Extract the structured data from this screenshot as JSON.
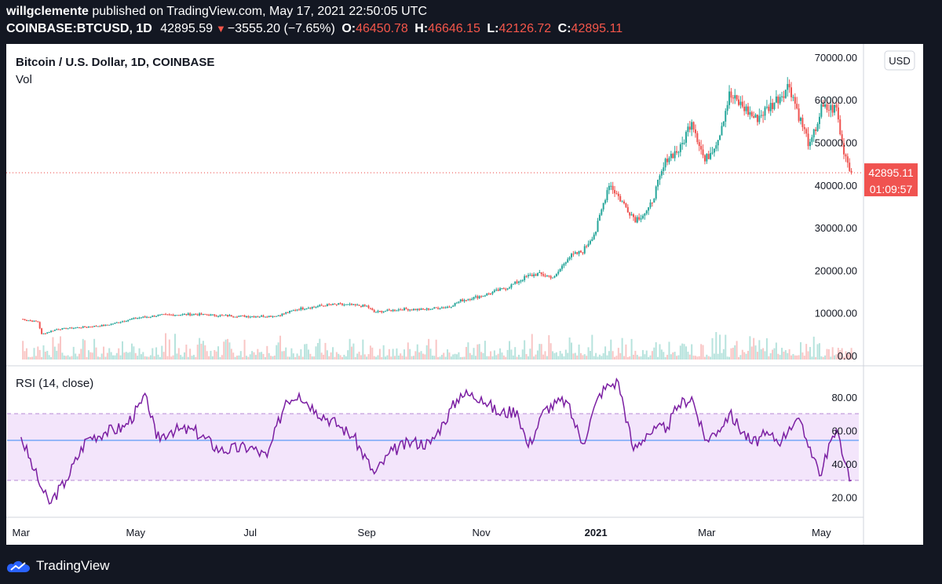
{
  "header": {
    "author": "willgclemente",
    "published": "published on TradingView.com, May 17, 2021 22:50:05 UTC",
    "symbol": "COINBASE:BTCUSD, 1D",
    "price": "42895.59",
    "change": "−3555.20 (−7.65%)",
    "o_label": "O:",
    "o_value": "46450.78",
    "h_label": "H:",
    "h_value": "46646.15",
    "l_label": "L:",
    "l_value": "42126.72",
    "c_label": "C:",
    "c_value": "42895.11"
  },
  "footer": {
    "brand": "TradingView"
  },
  "colors": {
    "up": "#26a69a",
    "down": "#ef5350",
    "rsi_line": "#7b1fa2",
    "rsi_band": "#f3e5fb",
    "rsi_mid": "#5b9cf6",
    "price_tag": "#f05350"
  },
  "chart_data": [
    {
      "type": "candlestick",
      "title": "Bitcoin / U.S. Dollar, 1D, COINBASE",
      "subtitle": "Vol",
      "currency": "USD",
      "price_tag": "42895.11",
      "countdown": "01:09:57",
      "x_ticks": [
        "Mar",
        "May",
        "Jul",
        "Sep",
        "Nov",
        "2021",
        "Mar",
        "May"
      ],
      "y_ticks": [
        "70000.00",
        "60000.00",
        "50000.00",
        "40000.00",
        "30000.00",
        "20000.00",
        "10000.00",
        "0.00"
      ],
      "ylim": [
        0,
        70000
      ],
      "x": [
        "2020-03-01",
        "2020-03-10",
        "2020-03-12",
        "2020-03-20",
        "2020-04-01",
        "2020-04-15",
        "2020-05-01",
        "2020-05-15",
        "2020-06-01",
        "2020-06-15",
        "2020-07-01",
        "2020-07-15",
        "2020-07-27",
        "2020-08-10",
        "2020-08-17",
        "2020-09-01",
        "2020-09-05",
        "2020-09-20",
        "2020-10-01",
        "2020-10-15",
        "2020-10-21",
        "2020-11-01",
        "2020-11-15",
        "2020-11-25",
        "2020-12-01",
        "2020-12-10",
        "2020-12-17",
        "2020-12-25",
        "2021-01-01",
        "2021-01-08",
        "2021-01-15",
        "2021-01-22",
        "2021-01-29",
        "2021-02-08",
        "2021-02-15",
        "2021-02-21",
        "2021-02-28",
        "2021-03-07",
        "2021-03-13",
        "2021-03-20",
        "2021-03-27",
        "2021-04-05",
        "2021-04-14",
        "2021-04-20",
        "2021-04-25",
        "2021-05-01",
        "2021-05-09",
        "2021-05-12",
        "2021-05-17"
      ],
      "close": [
        8600,
        7900,
        5000,
        6200,
        6600,
        7100,
        8800,
        9500,
        9700,
        9400,
        9200,
        9300,
        11000,
        11800,
        12000,
        11600,
        10200,
        10900,
        10800,
        11500,
        12900,
        14000,
        16000,
        18500,
        19200,
        18300,
        23000,
        24500,
        29300,
        40500,
        36000,
        32000,
        34000,
        46500,
        48500,
        55500,
        45500,
        51000,
        61000,
        58500,
        55500,
        59000,
        63500,
        55000,
        49000,
        57800,
        58000,
        49500,
        42895
      ]
    },
    {
      "type": "line",
      "title": "RSI (14, close)",
      "y_ticks": [
        "80.00",
        "60.00",
        "40.00",
        "20.00"
      ],
      "ylim": [
        15,
        90
      ],
      "bands": [
        30,
        70
      ],
      "midline": 54,
      "x": [
        "2020-03-01",
        "2020-03-08",
        "2020-03-12",
        "2020-03-16",
        "2020-03-25",
        "2020-04-05",
        "2020-04-15",
        "2020-04-25",
        "2020-05-07",
        "2020-05-12",
        "2020-05-20",
        "2020-06-01",
        "2020-06-15",
        "2020-07-01",
        "2020-07-10",
        "2020-07-20",
        "2020-07-27",
        "2020-08-05",
        "2020-08-17",
        "2020-08-25",
        "2020-09-05",
        "2020-09-15",
        "2020-09-25",
        "2020-10-05",
        "2020-10-12",
        "2020-10-21",
        "2020-11-01",
        "2020-11-10",
        "2020-11-20",
        "2020-11-26",
        "2020-12-05",
        "2020-12-16",
        "2020-12-25",
        "2021-01-03",
        "2021-01-08",
        "2021-01-13",
        "2021-01-21",
        "2021-01-28",
        "2021-02-08",
        "2021-02-14",
        "2021-02-21",
        "2021-02-28",
        "2021-03-07",
        "2021-03-13",
        "2021-03-25",
        "2021-04-01",
        "2021-04-10",
        "2021-04-14",
        "2021-04-18",
        "2021-04-25",
        "2021-05-01",
        "2021-05-05",
        "2021-05-10",
        "2021-05-14",
        "2021-05-17"
      ],
      "values": [
        56,
        36,
        25,
        16,
        30,
        55,
        59,
        62,
        80,
        55,
        60,
        60,
        48,
        50,
        44,
        78,
        82,
        72,
        63,
        56,
        34,
        48,
        53,
        52,
        65,
        82,
        80,
        70,
        72,
        50,
        73,
        78,
        52,
        82,
        87,
        89,
        48,
        58,
        62,
        75,
        80,
        54,
        60,
        70,
        52,
        57,
        54,
        62,
        67,
        50,
        33,
        52,
        58,
        40,
        30
      ]
    }
  ]
}
